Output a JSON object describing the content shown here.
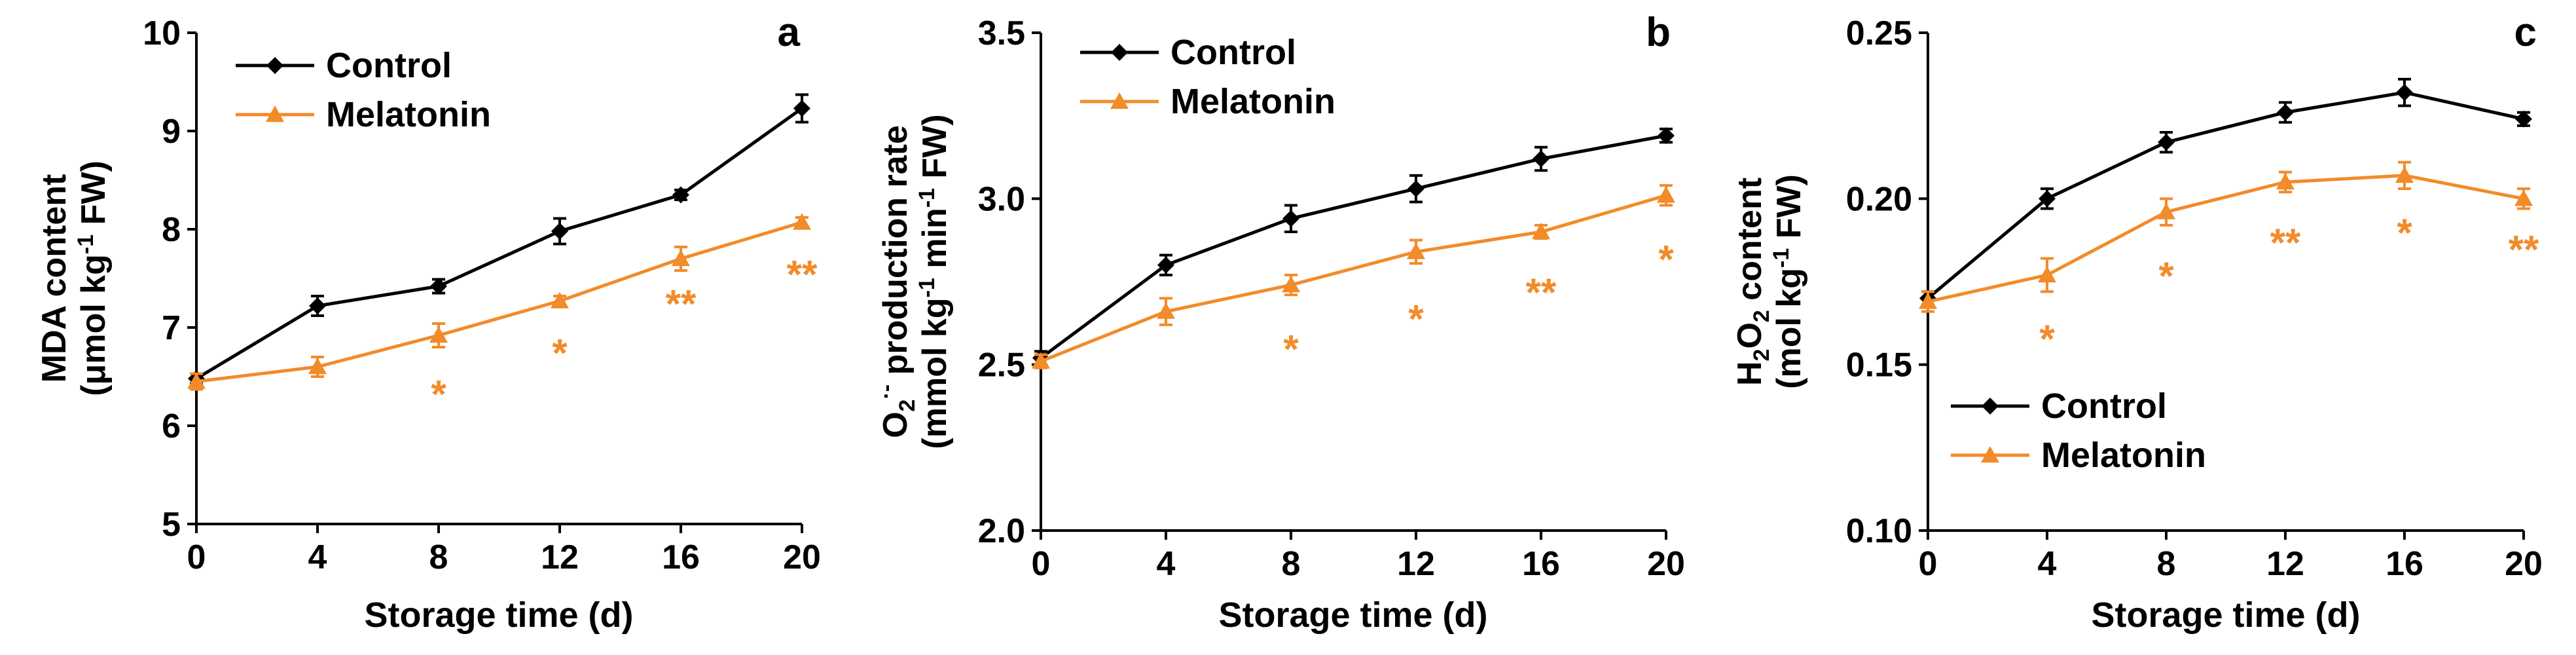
{
  "chart_data": [
    {
      "type": "line",
      "panel_label": "a",
      "xlabel": "Storage time (d)",
      "ylabel_line1": "MDA content",
      "ylabel_line2_pre": "(μmol kg",
      "ylabel_line2_sup": "-1",
      "ylabel_line2_post": " FW)",
      "x": [
        0,
        4,
        8,
        12,
        16,
        20
      ],
      "xlim": [
        0,
        20
      ],
      "ylim": [
        5,
        10
      ],
      "xticks": [
        "0",
        "4",
        "8",
        "12",
        "16",
        "20"
      ],
      "yticks": [
        "5",
        "6",
        "7",
        "8",
        "9",
        "10"
      ],
      "ytick_values": [
        5,
        6,
        7,
        8,
        9,
        10
      ],
      "legend_position": "top-left",
      "series": [
        {
          "name": "Control",
          "color": "#000000",
          "marker": "diamond",
          "values": [
            6.48,
            7.22,
            7.42,
            7.98,
            8.35,
            9.23
          ],
          "errors": [
            0.05,
            0.1,
            0.07,
            0.13,
            0.05,
            0.14
          ]
        },
        {
          "name": "Melatonin",
          "color": "#f28b2a",
          "marker": "triangle",
          "values": [
            6.45,
            6.6,
            6.92,
            7.27,
            7.7,
            8.07
          ],
          "errors": [
            0.08,
            0.1,
            0.12,
            0.05,
            0.12,
            0.05
          ]
        }
      ],
      "annotations": [
        {
          "x": 8,
          "label": "*",
          "y": 6.33
        },
        {
          "x": 12,
          "label": "*",
          "y": 6.75
        },
        {
          "x": 16,
          "label": "**",
          "y": 7.25
        },
        {
          "x": 20,
          "label": "**",
          "y": 7.55
        }
      ]
    },
    {
      "type": "line",
      "panel_label": "b",
      "xlabel": "Storage time (d)",
      "ylabel_line1_pre": "O",
      "ylabel_line1_sub": "2",
      "ylabel_line1_sup": "·-",
      "ylabel_line1_post": " production rate",
      "ylabel_line2_pre": "(mmol kg",
      "ylabel_line2_sup": "-1",
      "ylabel_line2_mid": " min",
      "ylabel_line2_sup2": "-1",
      "ylabel_line2_post": " FW)",
      "x": [
        0,
        4,
        8,
        12,
        16,
        20
      ],
      "xlim": [
        0,
        20
      ],
      "ylim": [
        2.0,
        3.5
      ],
      "xticks": [
        "0",
        "4",
        "8",
        "12",
        "16",
        "20"
      ],
      "yticks": [
        "2.0",
        "2.5",
        "3.0",
        "3.5"
      ],
      "ytick_values": [
        2.0,
        2.5,
        3.0,
        3.5
      ],
      "legend_position": "top-left",
      "series": [
        {
          "name": "Control",
          "color": "#000000",
          "marker": "diamond",
          "values": [
            2.52,
            2.8,
            2.94,
            3.03,
            3.12,
            3.19
          ],
          "errors": [
            0.02,
            0.03,
            0.04,
            0.04,
            0.035,
            0.02
          ]
        },
        {
          "name": "Melatonin",
          "color": "#f28b2a",
          "marker": "triangle",
          "values": [
            2.51,
            2.66,
            2.74,
            2.84,
            2.9,
            3.01
          ],
          "errors": [
            0.02,
            0.04,
            0.03,
            0.035,
            0.02,
            0.03
          ]
        }
      ],
      "annotations": [
        {
          "x": 8,
          "label": "*",
          "y": 2.55
        },
        {
          "x": 12,
          "label": "*",
          "y": 2.64
        },
        {
          "x": 16,
          "label": "**",
          "y": 2.72
        },
        {
          "x": 20,
          "label": "*",
          "y": 2.82
        }
      ]
    },
    {
      "type": "line",
      "panel_label": "c",
      "xlabel": "Storage time (d)",
      "ylabel_line1_pre": "H",
      "ylabel_line1_sub": "2",
      "ylabel_line1_mid": "O",
      "ylabel_line1_sub2": "2",
      "ylabel_line1_post": " content",
      "ylabel_line2_pre": "(mol kg",
      "ylabel_line2_sup": "-1",
      "ylabel_line2_post": " FW)",
      "x": [
        0,
        4,
        8,
        12,
        16,
        20
      ],
      "xlim": [
        0,
        20
      ],
      "ylim": [
        0.1,
        0.25
      ],
      "xticks": [
        "0",
        "4",
        "8",
        "12",
        "16",
        "20"
      ],
      "yticks": [
        "0.10",
        "0.15",
        "0.20",
        "0.25"
      ],
      "ytick_values": [
        0.1,
        0.15,
        0.2,
        0.25
      ],
      "legend_position": "bottom-left",
      "series": [
        {
          "name": "Control",
          "color": "#000000",
          "marker": "diamond",
          "values": [
            0.17,
            0.2,
            0.217,
            0.226,
            0.232,
            0.224
          ],
          "errors": [
            0.002,
            0.003,
            0.003,
            0.003,
            0.004,
            0.002
          ]
        },
        {
          "name": "Melatonin",
          "color": "#f28b2a",
          "marker": "triangle",
          "values": [
            0.169,
            0.177,
            0.196,
            0.205,
            0.207,
            0.2
          ],
          "errors": [
            0.003,
            0.005,
            0.004,
            0.003,
            0.004,
            0.003
          ]
        }
      ],
      "annotations": [
        {
          "x": 4,
          "label": "*",
          "y": 0.158
        },
        {
          "x": 8,
          "label": "*",
          "y": 0.177
        },
        {
          "x": 12,
          "label": "**",
          "y": 0.187
        },
        {
          "x": 16,
          "label": "*",
          "y": 0.19
        },
        {
          "x": 20,
          "label": "**",
          "y": 0.185
        }
      ]
    }
  ]
}
